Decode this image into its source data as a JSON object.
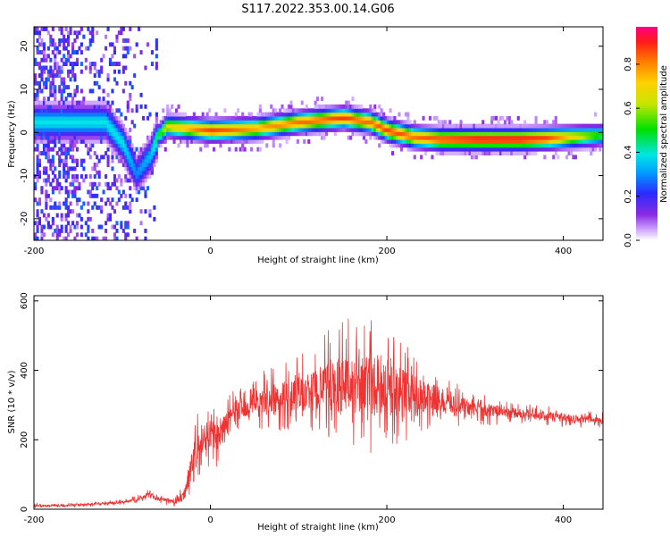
{
  "chart_data": [
    {
      "type": "heatmap",
      "title": "S117.2022.353.00.14.G06",
      "xlabel": "Height of straight line (km)",
      "ylabel": "Frequency (Hz)",
      "xlim": [
        -200,
        445
      ],
      "ylim": [
        -25,
        24.5
      ],
      "xticks": [
        -200,
        0,
        200,
        400
      ],
      "yticks": [
        -20,
        -10,
        0,
        10,
        20
      ],
      "colorbar": {
        "label": "Normalized spectral amplitude",
        "range": [
          0.0,
          0.97
        ],
        "ticks": [
          0.0,
          0.2,
          0.4,
          0.6,
          0.8
        ],
        "tick_labels": [
          "0.0",
          "0.2",
          "0.4",
          "0.6",
          "0.8"
        ]
      },
      "ridge_frequency": {
        "x": [
          -120,
          -100,
          -85,
          -70,
          -60,
          -50,
          0,
          50,
          100,
          150,
          180,
          200,
          230,
          260,
          300,
          350,
          380,
          445
        ],
        "freq": [
          2,
          -3,
          -10,
          -6,
          -1,
          1,
          0,
          0.5,
          2,
          3,
          2,
          0,
          -1.5,
          -2,
          -2,
          -2,
          -1.8,
          -1
        ],
        "peak_amplitude": [
          0.4,
          0.4,
          0.3,
          0.35,
          0.5,
          0.7,
          0.9,
          0.8,
          0.85,
          0.9,
          0.85,
          0.9,
          0.85,
          0.9,
          0.95,
          0.95,
          0.9,
          0.5
        ]
      },
      "grid": false
    },
    {
      "type": "line",
      "xlabel": "Height of straight line (km)",
      "ylabel": "SNR (10 * v/v)",
      "xlim": [
        -200,
        445
      ],
      "ylim": [
        0,
        615
      ],
      "xticks": [
        -200,
        0,
        200,
        400
      ],
      "yticks": [
        0,
        200,
        400,
        600
      ],
      "series": [
        {
          "color": "#ee3333",
          "x": [
            -200,
            -150,
            -100,
            -80,
            -70,
            -60,
            -40,
            -30,
            -20,
            -10,
            0,
            10,
            20,
            50,
            100,
            150,
            200,
            250,
            300,
            350,
            400,
            445
          ],
          "mean": [
            10,
            12,
            20,
            30,
            45,
            30,
            20,
            40,
            140,
            200,
            220,
            200,
            270,
            310,
            330,
            360,
            350,
            320,
            290,
            275,
            265,
            255
          ],
          "noise": [
            4,
            4,
            5,
            8,
            10,
            8,
            8,
            25,
            60,
            70,
            60,
            50,
            40,
            50,
            70,
            120,
            120,
            60,
            30,
            20,
            18,
            15
          ]
        }
      ],
      "grid": false
    }
  ]
}
